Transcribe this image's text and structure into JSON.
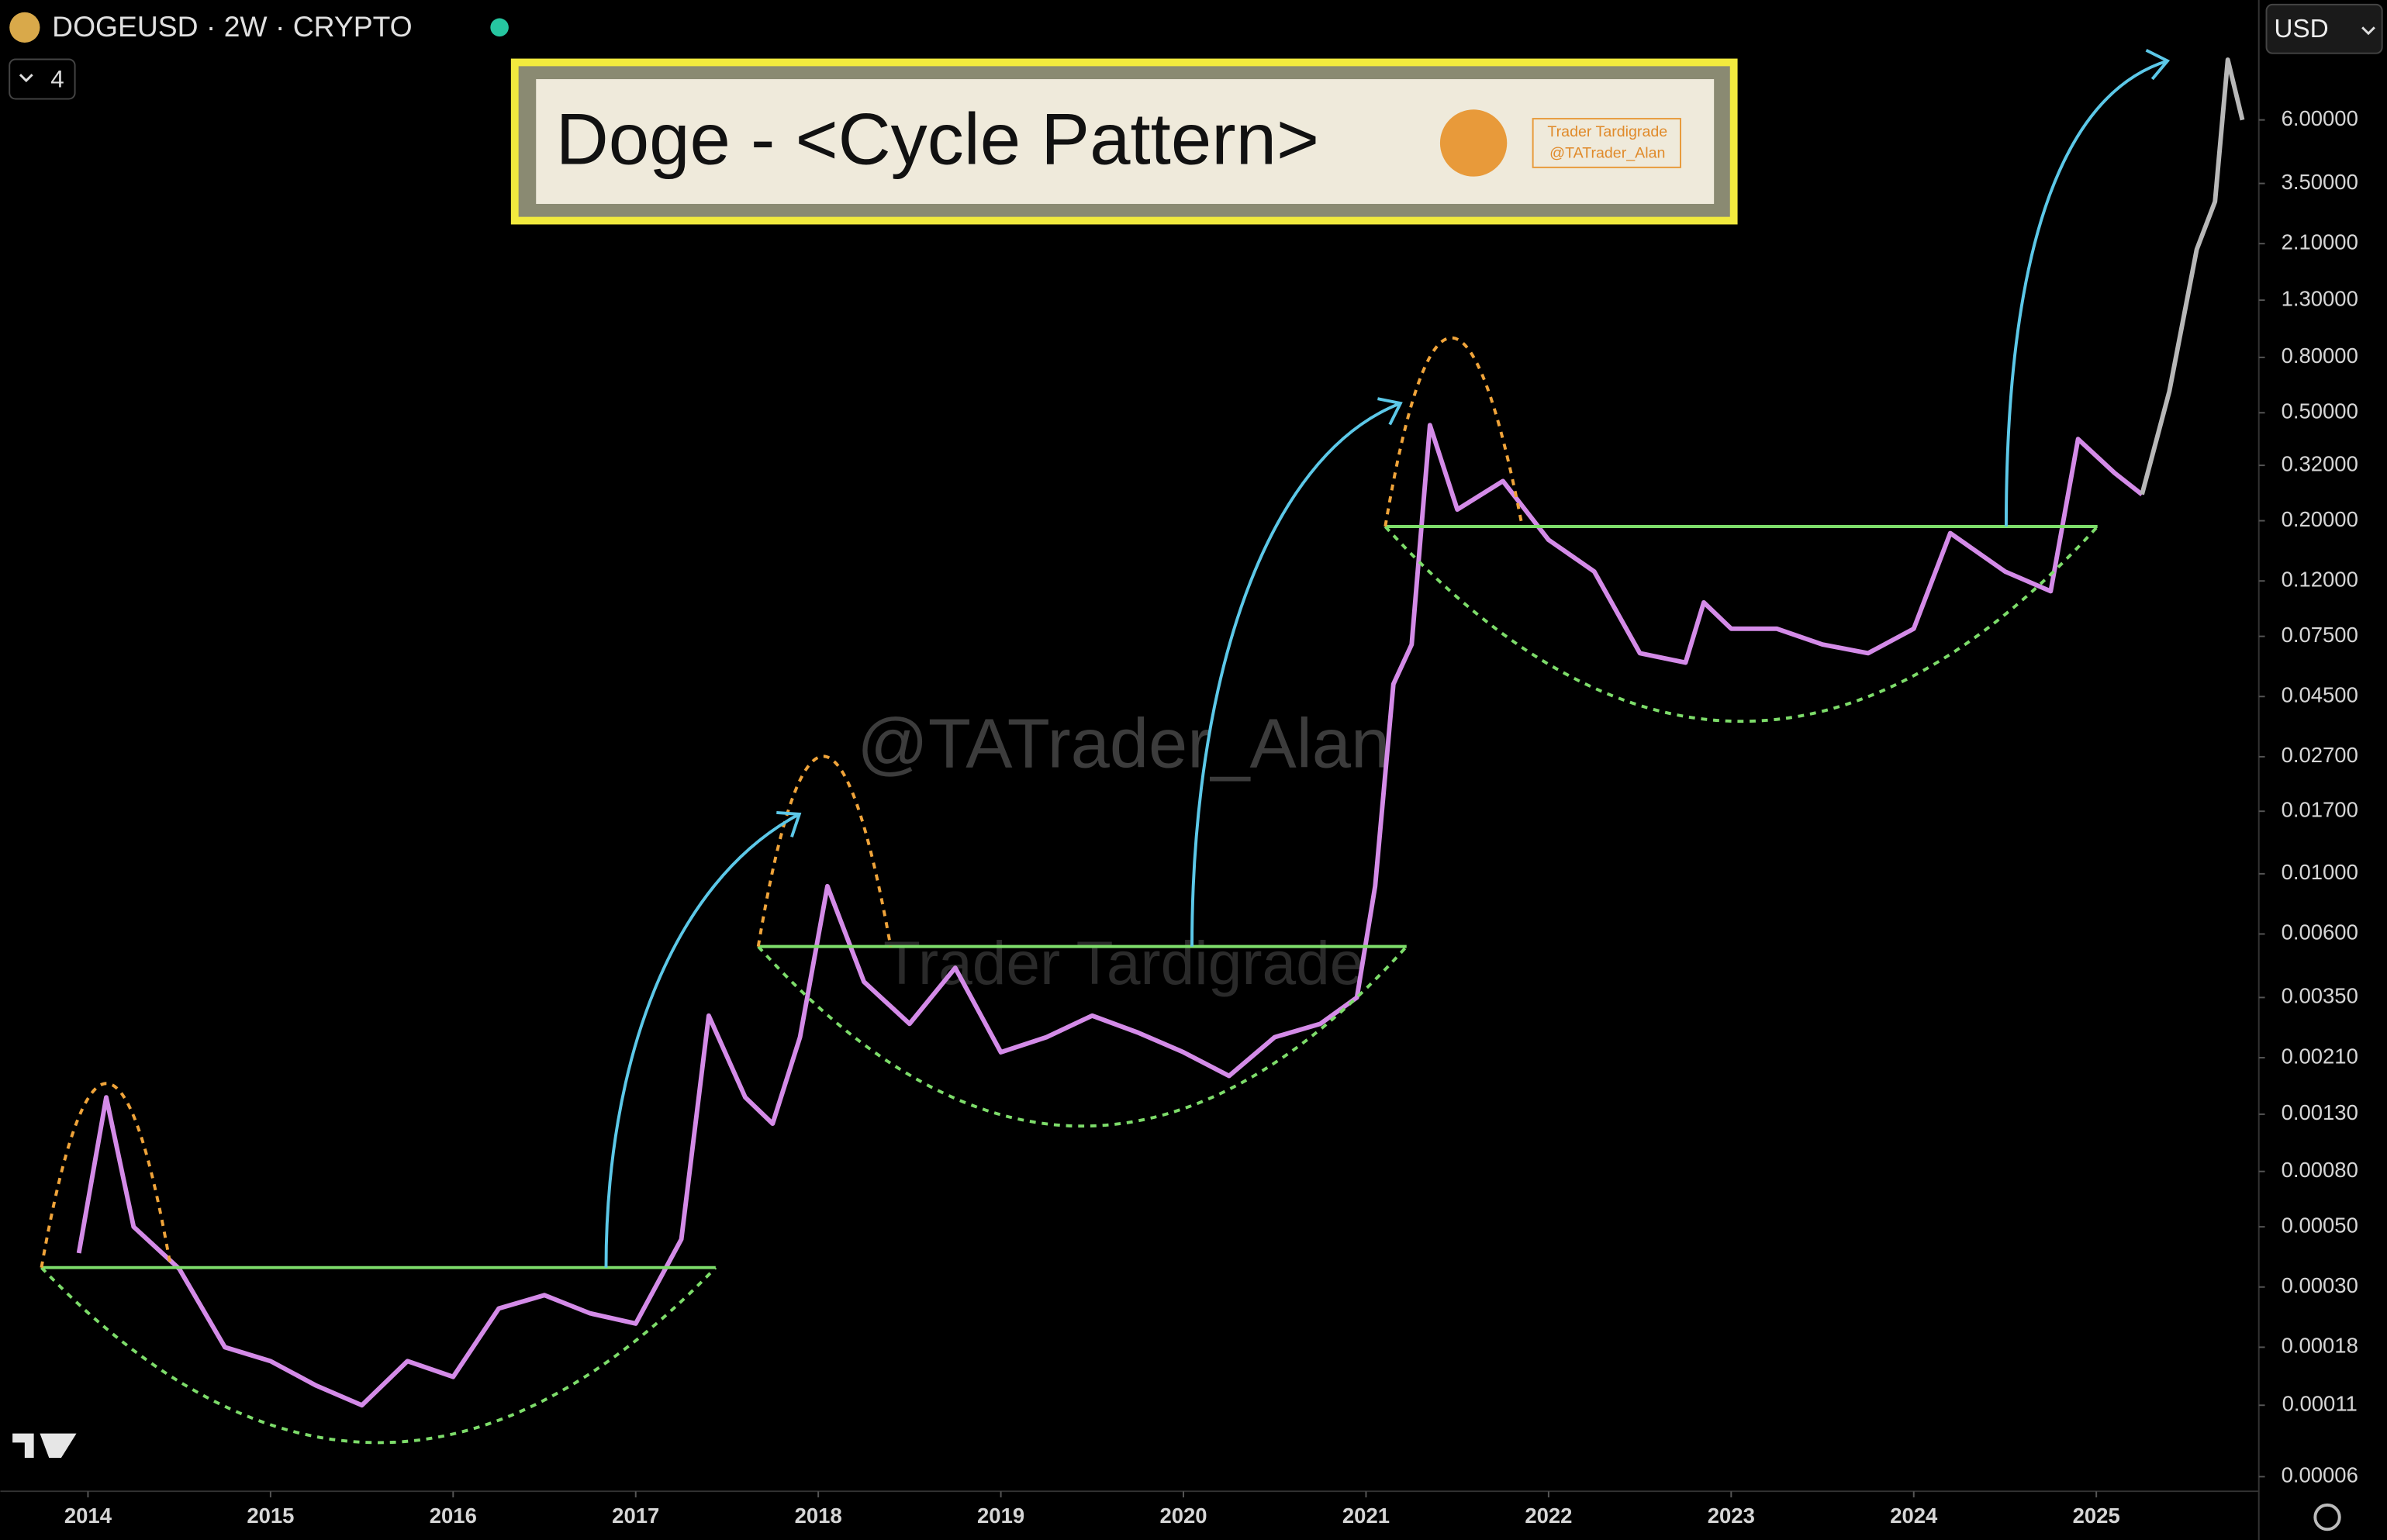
{
  "chart_data": {
    "type": "line",
    "symbol": "DOGEUSD · 2W · CRYPTO",
    "interval_badge": "4",
    "currency": "USD",
    "title": "Doge - <Cycle Pattern>",
    "logo_lines": [
      "Trader Tardigrade",
      "@TATrader_Alan"
    ],
    "watermarks": [
      "@TATrader_Alan",
      "Trader Tardigrade"
    ],
    "log_scale": true,
    "x": [
      2013.95,
      2014.1,
      2014.25,
      2014.5,
      2014.75,
      2015,
      2015.25,
      2015.5,
      2015.75,
      2016,
      2016.25,
      2016.5,
      2016.75,
      2017,
      2017.25,
      2017.4,
      2017.6,
      2017.75,
      2017.9,
      2018.05,
      2018.25,
      2018.5,
      2018.75,
      2019,
      2019.25,
      2019.5,
      2019.75,
      2020,
      2020.25,
      2020.5,
      2020.75,
      2020.95,
      2021.05,
      2021.15,
      2021.25,
      2021.35,
      2021.5,
      2021.75,
      2022,
      2022.25,
      2022.5,
      2022.75,
      2022.85,
      2023,
      2023.25,
      2023.5,
      2023.75,
      2024,
      2024.2,
      2024.5,
      2024.75,
      2024.9,
      2025.1,
      2025.25,
      2025.4,
      2025.55,
      2025.65,
      2025.72,
      2025.8
    ],
    "series": [
      {
        "color": "#d48be8",
        "values": [
          0.0004,
          0.0015,
          0.0005,
          0.00035,
          0.00018,
          0.00016,
          0.00013,
          0.00011,
          0.00016,
          0.00014,
          0.00025,
          0.00028,
          0.00024,
          0.00022,
          0.00045,
          0.003,
          0.0015,
          0.0012,
          0.0025,
          0.009,
          0.004,
          0.0028,
          0.0045,
          0.0022,
          0.0025,
          0.003,
          0.0026,
          0.0022,
          0.0018,
          0.0025,
          0.0028,
          0.0035,
          0.009,
          0.05,
          0.07,
          0.45,
          0.22,
          0.28,
          0.17,
          0.13,
          0.065,
          0.06,
          0.1,
          0.08,
          0.08,
          0.07,
          0.065,
          0.08,
          0.18,
          0.13,
          0.11,
          0.4,
          0.3,
          0.25,
          null,
          null,
          null,
          null,
          null
        ]
      },
      {
        "color": "#b8b8b8",
        "values": [
          null,
          null,
          null,
          null,
          null,
          null,
          null,
          null,
          null,
          null,
          null,
          null,
          null,
          null,
          null,
          null,
          null,
          null,
          null,
          null,
          null,
          null,
          null,
          null,
          null,
          null,
          null,
          null,
          null,
          null,
          null,
          null,
          null,
          null,
          null,
          null,
          null,
          null,
          null,
          null,
          null,
          null,
          null,
          null,
          null,
          null,
          null,
          null,
          null,
          null,
          null,
          null,
          null,
          0.25,
          0.6,
          2.0,
          3.0,
          10,
          6
        ]
      }
    ],
    "xlim": [
      2013.52,
      2025.89
    ],
    "xticks": [
      2014,
      2015,
      2016,
      2017,
      2018,
      2019,
      2020,
      2021,
      2022,
      2023,
      2024,
      2025
    ],
    "ylim": [
      5.3e-05,
      16.6
    ],
    "yticks": [
      {
        "value": 6,
        "label": "6.00000"
      },
      {
        "value": 3.5,
        "label": "3.50000"
      },
      {
        "value": 2.1,
        "label": "2.10000"
      },
      {
        "value": 1.3,
        "label": "1.30000"
      },
      {
        "value": 0.8,
        "label": "0.80000"
      },
      {
        "value": 0.5,
        "label": "0.50000"
      },
      {
        "value": 0.32,
        "label": "0.32000"
      },
      {
        "value": 0.2,
        "label": "0.20000"
      },
      {
        "value": 0.12,
        "label": "0.12000"
      },
      {
        "value": 0.075,
        "label": "0.07500"
      },
      {
        "value": 0.045,
        "label": "0.04500"
      },
      {
        "value": 0.027,
        "label": "0.02700"
      },
      {
        "value": 0.017,
        "label": "0.01700"
      },
      {
        "value": 0.01,
        "label": "0.01000"
      },
      {
        "value": 0.006,
        "label": "0.00600"
      },
      {
        "value": 0.0035,
        "label": "0.00350"
      },
      {
        "value": 0.0021,
        "label": "0.00210"
      },
      {
        "value": 0.0013,
        "label": "0.00130"
      },
      {
        "value": 0.0008,
        "label": "0.00080"
      },
      {
        "value": 0.0005,
        "label": "0.00050"
      },
      {
        "value": 0.0003,
        "label": "0.00030"
      },
      {
        "value": 0.00018,
        "label": "0.00018"
      },
      {
        "value": 0.00011,
        "label": "0.00011"
      },
      {
        "value": 6e-05,
        "label": "0.00006"
      }
    ],
    "grid": false
  }
}
